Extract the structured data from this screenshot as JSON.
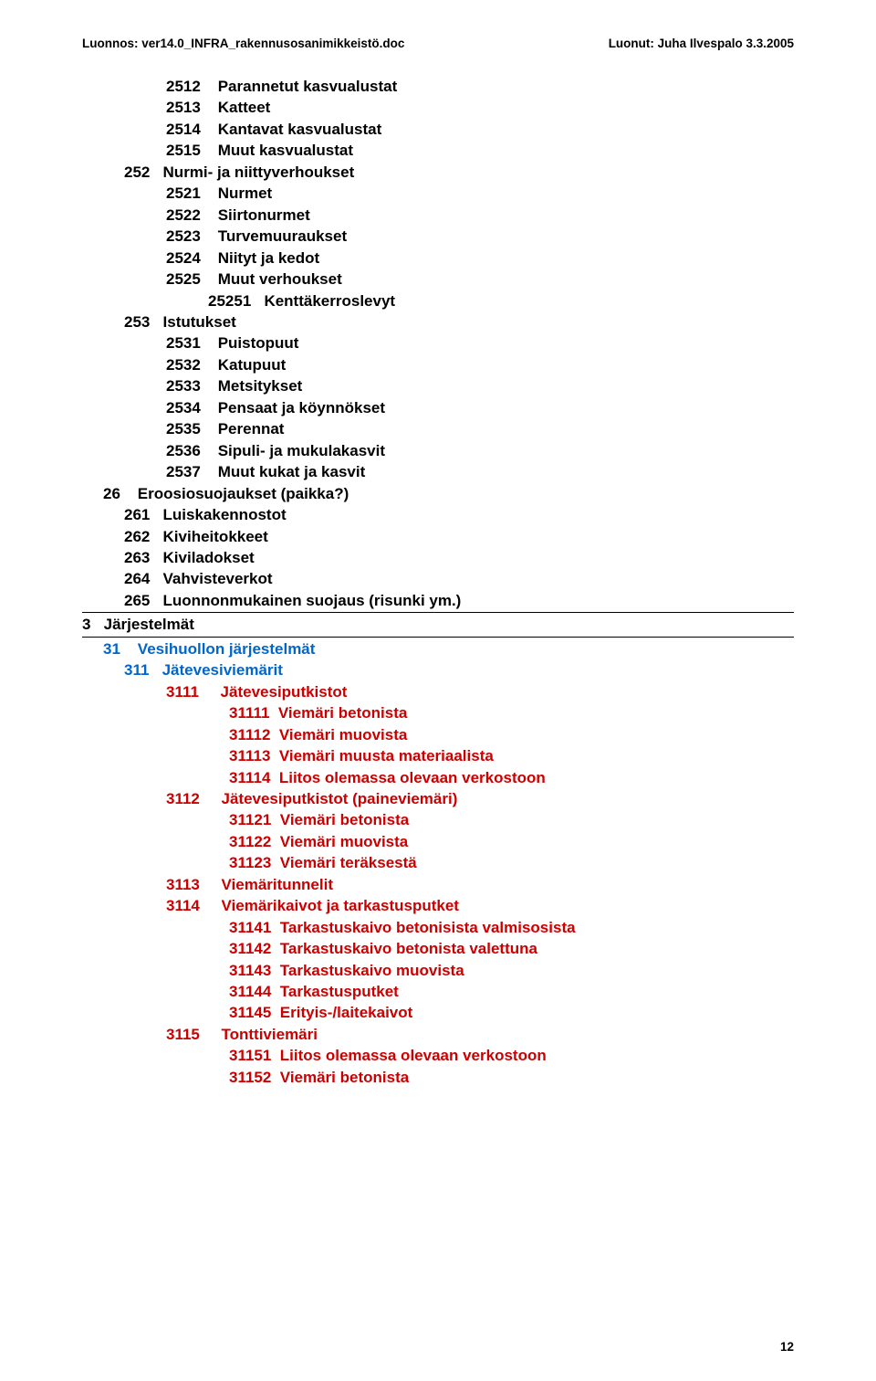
{
  "header": {
    "left": "Luonnos: ver14.0_INFRA_rakennusosanimikkeistö.doc",
    "right": "Luonut: Juha Ilvespalo 3.3.2005"
  },
  "rows": [
    {
      "cls": "i2",
      "t": "2512    Parannetut kasvualustat"
    },
    {
      "cls": "i2",
      "t": "2513    Katteet"
    },
    {
      "cls": "i2",
      "t": "2514    Kantavat kasvualustat"
    },
    {
      "cls": "i2",
      "t": "2515    Muut kasvualustat"
    },
    {
      "cls": "i1",
      "t": "252   Nurmi- ja niittyverhoukset"
    },
    {
      "cls": "i2",
      "t": "2521    Nurmet"
    },
    {
      "cls": "i2",
      "t": "2522    Siirtonurmet"
    },
    {
      "cls": "i2",
      "t": "2523    Turvemuuraukset"
    },
    {
      "cls": "i2",
      "t": "2524    Niityt ja kedot"
    },
    {
      "cls": "i2",
      "t": "2525    Muut verhoukset"
    },
    {
      "cls": "i3",
      "t": "25251   Kenttäkerroslevyt"
    },
    {
      "cls": "i1",
      "t": "253   Istutukset"
    },
    {
      "cls": "i2",
      "t": "2531    Puistopuut"
    },
    {
      "cls": "i2",
      "t": "2532    Katupuut"
    },
    {
      "cls": "i2",
      "t": "2533    Metsitykset"
    },
    {
      "cls": "i2",
      "t": "2534    Pensaat ja köynnökset"
    },
    {
      "cls": "i2",
      "t": "2535    Perennat"
    },
    {
      "cls": "i2",
      "t": "2536    Sipuli- ja mukulakasvit"
    },
    {
      "cls": "i2",
      "t": "2537    Muut kukat ja kasvit"
    },
    {
      "cls": "ih",
      "t": "26    Eroosiosuojaukset (paikka?)"
    },
    {
      "cls": "i1",
      "t": "261   Luiskakennostot"
    },
    {
      "cls": "i1",
      "t": "262   Kiviheitokkeet"
    },
    {
      "cls": "i1",
      "t": "263   Kiviladokset"
    },
    {
      "cls": "i1",
      "t": "264   Vahvisteverkot"
    },
    {
      "cls": "i1",
      "t": "265   Luonnonmukainen suojaus (risunki ym.)"
    },
    {
      "cls": "i0",
      "t": "3   Järjestelmät",
      "hr": true
    },
    {
      "cls": "ih blue",
      "t": "31    Vesihuollon järjestelmät",
      "hr": true
    },
    {
      "cls": "i1 blue",
      "t": "311   Jätevesiviemärit"
    },
    {
      "cls": "i2 red",
      "t": "3111     Jätevesiputkistot"
    },
    {
      "cls": "i4 red",
      "t": "31111  Viemäri betonista"
    },
    {
      "cls": "i4 red",
      "t": "31112  Viemäri muovista"
    },
    {
      "cls": "i4 red",
      "t": "31113  Viemäri muusta materiaalista"
    },
    {
      "cls": "i4 red",
      "t": "31114  Liitos olemassa olevaan verkostoon"
    },
    {
      "cls": "i2 red",
      "t": "3112     Jätevesiputkistot (paineviemäri)"
    },
    {
      "cls": "i4 red",
      "t": "31121  Viemäri betonista"
    },
    {
      "cls": "i4 red",
      "t": "31122  Viemäri muovista"
    },
    {
      "cls": "i4 red",
      "t": "31123  Viemäri teräksestä"
    },
    {
      "cls": "i2 red",
      "t": "3113     Viemäritunnelit"
    },
    {
      "cls": "i2 red",
      "t": "3114     Viemärikaivot ja tarkastusputket"
    },
    {
      "cls": "i4 red",
      "t": "31141  Tarkastuskaivo betonisista valmisosista"
    },
    {
      "cls": "i4 red",
      "t": "31142  Tarkastuskaivo betonista valettuna"
    },
    {
      "cls": "i4 red",
      "t": "31143  Tarkastuskaivo muovista"
    },
    {
      "cls": "i4 red",
      "t": "31144  Tarkastusputket"
    },
    {
      "cls": "i4 red",
      "t": "31145  Erityis-/laitekaivot"
    },
    {
      "cls": "i2 red",
      "t": "3115     Tonttiviemäri"
    },
    {
      "cls": "i4 red",
      "t": "31151  Liitos olemassa olevaan verkostoon"
    },
    {
      "cls": "i4 red",
      "t": "31152  Viemäri betonista"
    }
  ],
  "pageNumber": "12"
}
